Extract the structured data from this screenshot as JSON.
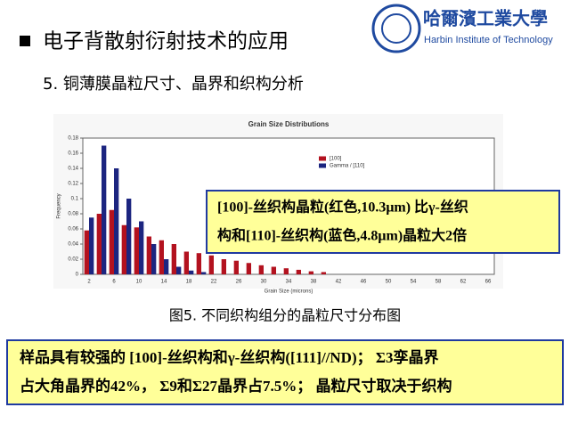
{
  "header": {
    "title": "电子背散射衍射技术的应用",
    "logo_cn": "哈爾濱工業大學",
    "logo_en": "Harbin Institute of Technology"
  },
  "section": "5.  铜薄膜晶粒尺寸、晶界和织构分析",
  "callout": {
    "lines": [
      "[100]-丝织构晶粒(红色,10.3μm) 比γ-丝织",
      "构和[110]-丝织构(蓝色,4.8μm)晶粒大2倍"
    ]
  },
  "caption": "图5.  不同织构组分的晶粒尺寸分布图",
  "summary": {
    "lines": [
      "样品具有较强的 [100]-丝织构和γ-丝织构([111]//ND)； Σ3孪晶界",
      "占大角晶界的42%， Σ9和Σ27晶界占7.5%；  晶粒尺寸取决于织构"
    ]
  },
  "chart_data": {
    "type": "bar",
    "title": "Grain Size Distributions",
    "x_label": "Grain Size (microns)",
    "y_label": "Frequency",
    "categories": [
      2,
      null,
      6,
      null,
      10,
      null,
      14,
      null,
      18,
      null,
      22,
      null,
      26,
      null,
      30,
      null,
      34,
      null,
      38,
      null,
      42,
      null,
      46,
      null,
      50,
      null,
      54,
      null,
      58,
      null,
      62,
      null,
      66
    ],
    "series": [
      {
        "name": "[100]",
        "color": "#b3121f",
        "values": [
          0.058,
          0.08,
          0.085,
          0.065,
          0.062,
          0.05,
          0.045,
          0.04,
          0.03,
          0.028,
          0.025,
          0.02,
          0.018,
          0.015,
          0.012,
          0.01,
          0.008,
          0.006,
          0.004,
          0.003,
          0,
          0,
          0,
          0,
          0,
          0,
          0,
          0,
          0,
          0,
          0,
          0,
          0
        ]
      },
      {
        "name": "Gamma / [110]",
        "color": "#1c2580",
        "values": [
          0.075,
          0.17,
          0.14,
          0.1,
          0.07,
          0.04,
          0.02,
          0.01,
          0.005,
          0.003,
          0,
          0,
          0,
          0,
          0,
          0,
          0,
          0,
          0,
          0,
          0,
          0,
          0,
          0,
          0,
          0,
          0,
          0,
          0,
          0,
          0,
          0,
          0
        ]
      }
    ],
    "ylim": [
      0,
      0.18
    ],
    "yticks": [
      0,
      0.02,
      0.04,
      0.06,
      0.08,
      0.1,
      0.12,
      0.14,
      0.16,
      0.18
    ],
    "grid": false,
    "legend": "top-center"
  }
}
